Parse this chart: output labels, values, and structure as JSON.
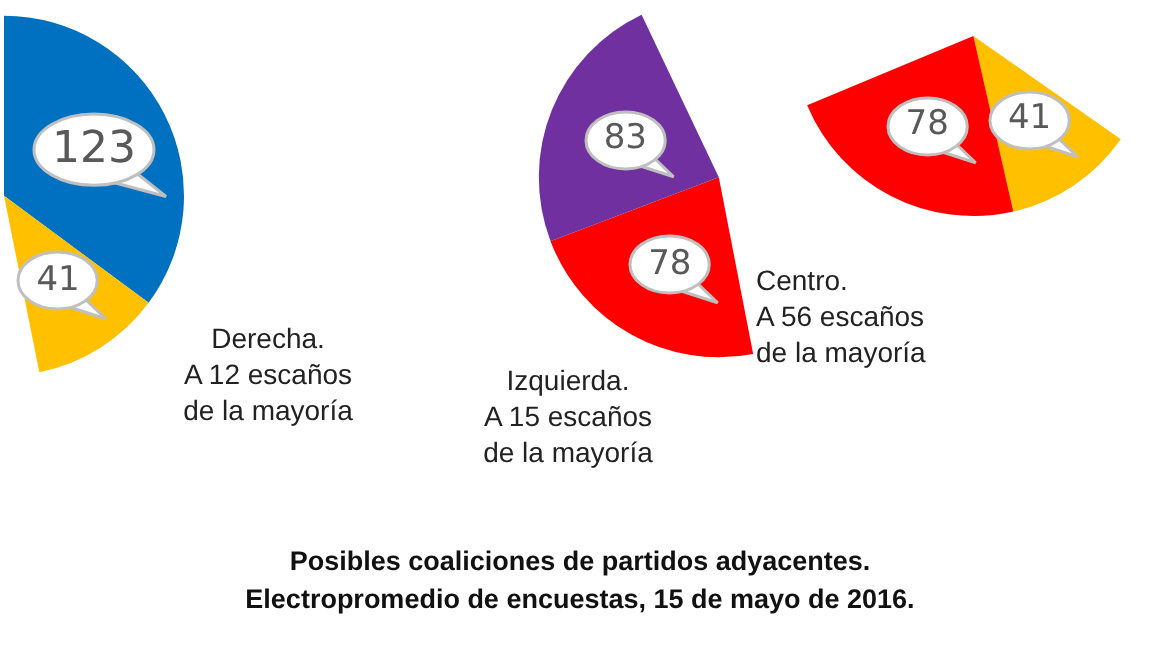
{
  "chart_data": [
    {
      "type": "pie",
      "title": "Derecha.",
      "subtitle": "A 12 escaños de la mayoría",
      "categories": [
        null,
        null
      ],
      "values": [
        123,
        41
      ],
      "colors": [
        "#0070c0",
        "#ffc000"
      ],
      "data_labels": true,
      "annotations": [
        "Posibles coaliciones de partidos adyacentes.",
        "Electropromedio de  encuestas, 15 de mayo de 2016."
      ]
    },
    {
      "type": "pie",
      "title": "Izquierda.",
      "subtitle": "A 15 escaños de la mayoría",
      "categories": [
        null,
        null
      ],
      "values": [
        78,
        83
      ],
      "colors": [
        "#ff0000",
        "#7030a0"
      ],
      "data_labels": true
    },
    {
      "type": "pie",
      "title": "Centro.",
      "subtitle": "A 56 escaños de la mayoría",
      "categories": [
        null,
        null
      ],
      "values": [
        41,
        78
      ],
      "colors": [
        "#ffc000",
        "#ff0000"
      ],
      "data_labels": true
    }
  ]
}
